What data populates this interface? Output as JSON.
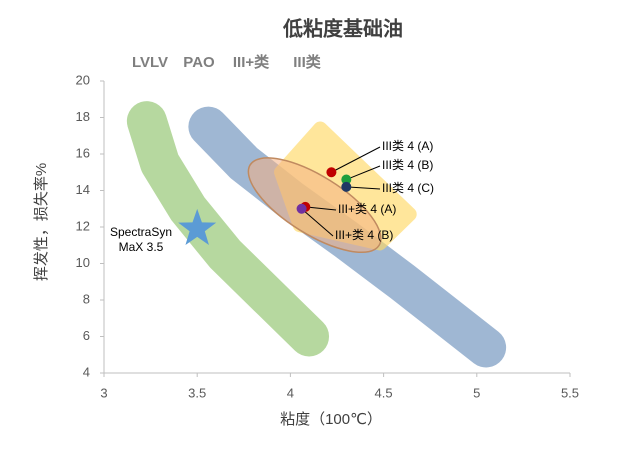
{
  "chart_data": {
    "type": "scatter",
    "title": "低粘度基础油",
    "x_label": "粘度（100℃）",
    "y_label": "挥发性，损失率%",
    "xlim": [
      3,
      5.5
    ],
    "xticks": [
      3,
      3.5,
      4,
      4.5,
      5,
      5.5
    ],
    "ylim": [
      4,
      20
    ],
    "yticks": [
      4,
      6,
      8,
      10,
      12,
      14,
      16,
      18,
      20
    ],
    "grid": false,
    "series": [
      {
        "name": "LVLV",
        "kind": "band",
        "color": "#a9d18e",
        "x": [
          3.23,
          3.3,
          3.45,
          3.65,
          3.9,
          4.1
        ],
        "y": [
          17.8,
          15.5,
          13,
          10.5,
          8,
          6
        ]
      },
      {
        "name": "PAO",
        "kind": "band",
        "color": "#8eaacb",
        "x": [
          3.56,
          3.75,
          4.0,
          4.3,
          4.6,
          4.85,
          5.05
        ],
        "y": [
          17.5,
          15.5,
          13.5,
          11.3,
          9,
          7,
          5.4
        ]
      },
      {
        "name": "III类",
        "kind": "polygon",
        "color": "#ffd966",
        "x": [
          4.16,
          4.64,
          4.48,
          4.05,
          3.95
        ],
        "y": [
          17.4,
          12.7,
          11.1,
          12.1,
          15.0
        ]
      },
      {
        "name": "III+类",
        "kind": "ellipse",
        "color": "#f4b183",
        "x": [
          4.13
        ],
        "y": [
          13.2
        ]
      }
    ],
    "points": [
      {
        "name": "III类 4 (A)",
        "color": "#c00000",
        "x": 4.22,
        "y": 15.0
      },
      {
        "name": "III类 4 (B)",
        "color": "#1e9e3e",
        "x": 4.3,
        "y": 14.6
      },
      {
        "name": "III类 4 (C)",
        "color": "#1f3864",
        "x": 4.3,
        "y": 14.2
      },
      {
        "name": "III+类 4 (A)",
        "color": "#c00000",
        "x": 4.08,
        "y": 13.1
      },
      {
        "name": "III+类 4 (B)",
        "color": "#7030a0",
        "x": 4.06,
        "y": 13.0
      }
    ],
    "star": {
      "label_lines": [
        "SpectraSyn",
        "MaX 3.5"
      ],
      "color": "#5b9bd5",
      "x": 3.5,
      "y": 11.9
    }
  }
}
